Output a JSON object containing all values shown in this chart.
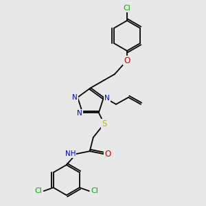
{
  "bg_color": "#e8e8e8",
  "atom_colors": {
    "N": "#0000cc",
    "O": "#cc0000",
    "S": "#bbbb00",
    "Cl": "#00aa00"
  },
  "bond_color": "#000000",
  "lw": 1.3,
  "fs": 7.5
}
